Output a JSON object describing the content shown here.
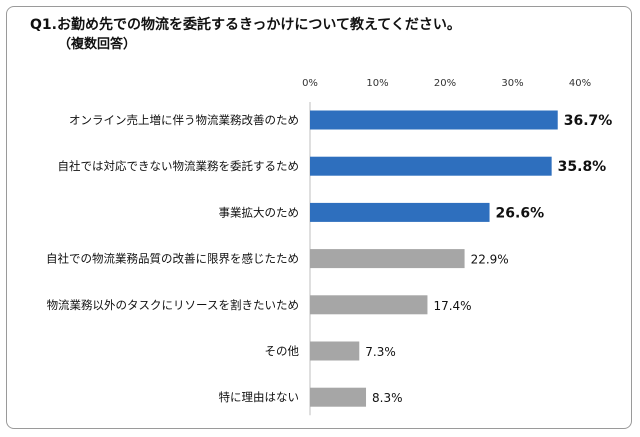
{
  "title": "Q1.お勤め先での物流を委託するきっかけについて教えてください。",
  "subtitle": "（複数回答）",
  "colors": {
    "highlight": "#2e6fbe",
    "normal": "#a6a6a6"
  },
  "chart_data": {
    "type": "bar",
    "orientation": "horizontal",
    "title": "Q1.お勤め先での物流を委託するきっかけについて教えてください。",
    "subtitle": "（複数回答）",
    "xlim": [
      0,
      40
    ],
    "ticks": [
      "0%",
      "10%",
      "20%",
      "30%",
      "40%"
    ],
    "grid": false,
    "categories": [
      "オンライン売上増に伴う物流業務改善のため",
      "自社では対応できない物流業務を委託するため",
      "事業拡大のため",
      "自社での物流業務品質の改善に限界を感じたため",
      "物流業務以外のタスクにリソースを割きたいため",
      "その他",
      "特に理由はない"
    ],
    "values": [
      36.7,
      35.8,
      26.6,
      22.9,
      17.4,
      7.3,
      8.3
    ],
    "labels": [
      "36.7%",
      "35.8%",
      "26.6%",
      "22.9%",
      "17.4%",
      "7.3%",
      "8.3%"
    ],
    "highlighted": [
      true,
      true,
      true,
      false,
      false,
      false,
      false
    ]
  }
}
